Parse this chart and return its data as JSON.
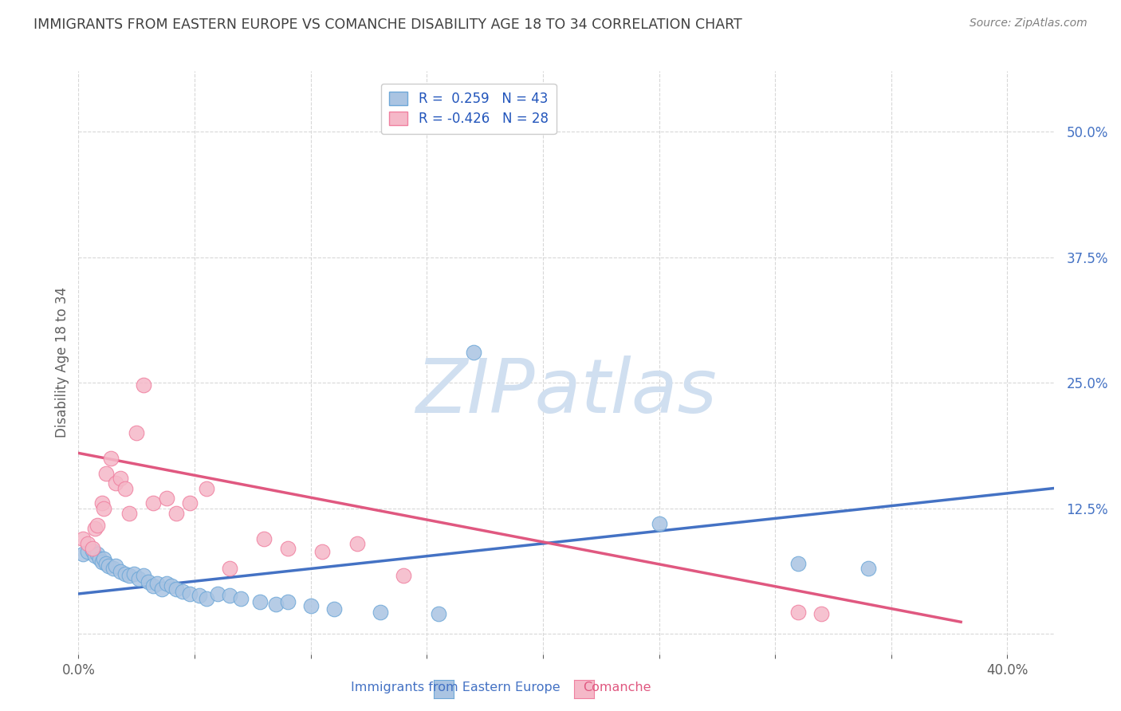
{
  "title": "IMMIGRANTS FROM EASTERN EUROPE VS COMANCHE DISABILITY AGE 18 TO 34 CORRELATION CHART",
  "source": "Source: ZipAtlas.com",
  "ylabel": "Disability Age 18 to 34",
  "xlim": [
    0.0,
    0.42
  ],
  "ylim": [
    -0.02,
    0.56
  ],
  "xticks": [
    0.0,
    0.05,
    0.1,
    0.15,
    0.2,
    0.25,
    0.3,
    0.35,
    0.4
  ],
  "yticks": [
    0.0,
    0.125,
    0.25,
    0.375,
    0.5
  ],
  "blue_color": "#aac4e2",
  "pink_color": "#f5b8c8",
  "blue_edge_color": "#6ea8d8",
  "pink_edge_color": "#f080a0",
  "blue_line_color": "#4472c4",
  "pink_line_color": "#e05880",
  "legend_R_blue": "0.259",
  "legend_N_blue": "43",
  "legend_R_pink": "-0.426",
  "legend_N_pink": "28",
  "blue_scatter_x": [
    0.002,
    0.004,
    0.006,
    0.007,
    0.008,
    0.009,
    0.01,
    0.011,
    0.012,
    0.013,
    0.015,
    0.016,
    0.018,
    0.02,
    0.022,
    0.024,
    0.026,
    0.028,
    0.03,
    0.032,
    0.034,
    0.036,
    0.038,
    0.04,
    0.042,
    0.045,
    0.048,
    0.052,
    0.055,
    0.06,
    0.065,
    0.07,
    0.078,
    0.085,
    0.09,
    0.1,
    0.11,
    0.13,
    0.155,
    0.17,
    0.25,
    0.31,
    0.34
  ],
  "blue_scatter_y": [
    0.08,
    0.082,
    0.083,
    0.078,
    0.08,
    0.075,
    0.072,
    0.075,
    0.07,
    0.068,
    0.065,
    0.068,
    0.062,
    0.06,
    0.058,
    0.06,
    0.055,
    0.058,
    0.052,
    0.048,
    0.05,
    0.045,
    0.05,
    0.048,
    0.045,
    0.042,
    0.04,
    0.038,
    0.035,
    0.04,
    0.038,
    0.035,
    0.032,
    0.03,
    0.032,
    0.028,
    0.025,
    0.022,
    0.02,
    0.28,
    0.11,
    0.07,
    0.065
  ],
  "pink_scatter_x": [
    0.002,
    0.004,
    0.006,
    0.007,
    0.008,
    0.01,
    0.011,
    0.012,
    0.014,
    0.016,
    0.018,
    0.02,
    0.022,
    0.025,
    0.028,
    0.032,
    0.038,
    0.042,
    0.048,
    0.055,
    0.065,
    0.08,
    0.09,
    0.105,
    0.12,
    0.14,
    0.31,
    0.32
  ],
  "pink_scatter_y": [
    0.095,
    0.09,
    0.085,
    0.105,
    0.108,
    0.13,
    0.125,
    0.16,
    0.175,
    0.15,
    0.155,
    0.145,
    0.12,
    0.2,
    0.248,
    0.13,
    0.135,
    0.12,
    0.13,
    0.145,
    0.065,
    0.095,
    0.085,
    0.082,
    0.09,
    0.058,
    0.022,
    0.02
  ],
  "blue_trend_x": [
    0.0,
    0.42
  ],
  "blue_trend_y": [
    0.04,
    0.145
  ],
  "pink_trend_x": [
    0.0,
    0.38
  ],
  "pink_trend_y": [
    0.18,
    0.012
  ],
  "background_color": "#ffffff",
  "grid_color": "#d8d8d8",
  "title_color": "#404040",
  "source_color": "#808080",
  "axis_label_color": "#606060",
  "tick_color_y": "#4472c4",
  "tick_color_x": "#606060",
  "legend_text_color": "#2255bb",
  "watermark_color": "#d0dff0"
}
